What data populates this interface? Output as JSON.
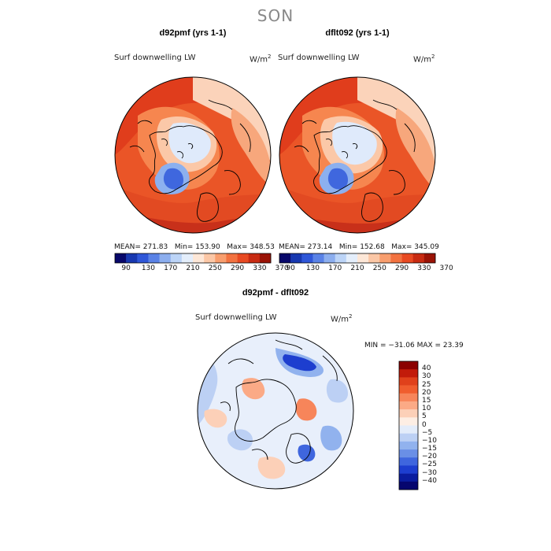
{
  "title": "SON",
  "panels": [
    {
      "title": "d92pmf (yrs 1-1)",
      "variable": "Surf downwelling LW",
      "unit": "W/m",
      "stats": {
        "mean": "MEAN= 271.83",
        "min": "Min= 153.90",
        "max": "Max= 348.53"
      }
    },
    {
      "title": "dflt092 (yrs 1-1)",
      "variable": "Surf downwelling LW",
      "unit": "W/m",
      "stats": {
        "mean": "MEAN= 273.14",
        "min": "Min= 152.68",
        "max": "Max= 345.09"
      }
    }
  ],
  "horizontal_colorbar": {
    "ticks": [
      "90",
      "130",
      "170",
      "210",
      "250",
      "290",
      "330",
      "370"
    ],
    "colors": [
      "#08086a",
      "#1838b0",
      "#2f57d8",
      "#5a82e6",
      "#8caeee",
      "#bcd4f7",
      "#e4eefb",
      "#fde7d7",
      "#fbc7a6",
      "#f89e6e",
      "#f27240",
      "#e84a22",
      "#c82b12",
      "#9a1306"
    ]
  },
  "difference_panel": {
    "title": "d92pmf - dflt092",
    "variable": "Surf downwelling LW",
    "unit": "W/m",
    "stats": "MIN = −31.06  MAX =   23.39"
  },
  "vertical_colorbar": {
    "ticks": [
      "40",
      "30",
      "25",
      "20",
      "15",
      "10",
      "5",
      "0",
      "−5",
      "−10",
      "−15",
      "−20",
      "−25",
      "−30",
      "−40"
    ],
    "colors": [
      "#8b0000",
      "#c21b0a",
      "#e0411b",
      "#f05d2e",
      "#f7855a",
      "#fbaa86",
      "#fcd0b8",
      "#fdeee4",
      "#e3ecfa",
      "#bcd0f4",
      "#91b2ee",
      "#6a8fe6",
      "#3f66de",
      "#1d3ecf",
      "#0a1c9e",
      "#06066e"
    ]
  }
}
